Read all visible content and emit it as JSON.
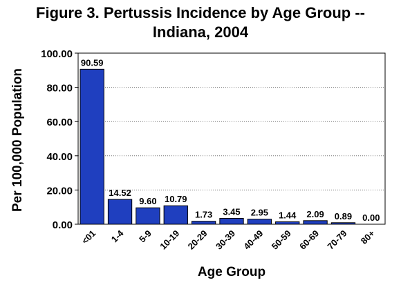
{
  "chart_data": {
    "type": "bar",
    "title_line1": "Figure 3. Pertussis Incidence by Age Group --",
    "title_line2": "Indiana, 2004",
    "xlabel": "Age Group",
    "ylabel": "Per 100,000 Population",
    "categories": [
      "<01",
      "1-4",
      "5-9",
      "10-19",
      "20-29",
      "30-39",
      "40-49",
      "50-59",
      "60-69",
      "70-79",
      "80+"
    ],
    "values": [
      90.59,
      14.52,
      9.6,
      10.79,
      1.73,
      3.45,
      2.95,
      1.44,
      2.09,
      0.89,
      0.0
    ],
    "value_labels": [
      "90.59",
      "14.52",
      "9.60",
      "10.79",
      "1.73",
      "3.45",
      "2.95",
      "1.44",
      "2.09",
      "0.89",
      "0.00"
    ],
    "ylim": [
      0,
      100
    ],
    "yticks": [
      "0.00",
      "20.00",
      "40.00",
      "60.00",
      "80.00",
      "100.00"
    ],
    "grid": true,
    "bar_color": "#1F3FBF"
  }
}
